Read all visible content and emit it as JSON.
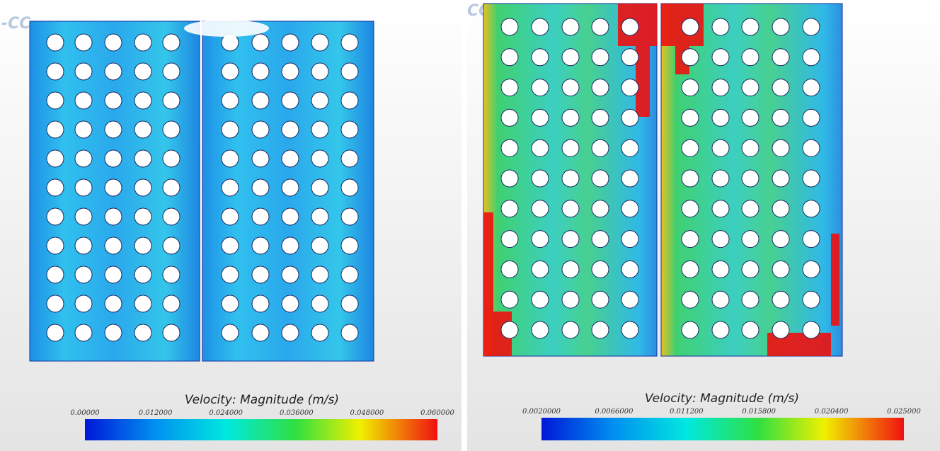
{
  "panels": [
    {
      "watermark": "-CC",
      "colorbar": {
        "title": "Velocity: Magnitude (m/s)",
        "ticks": [
          {
            "value": 0,
            "label": "0.00000"
          },
          {
            "value": 0.012,
            "label": "0.012000"
          },
          {
            "value": 0.024,
            "label": "0.024000"
          },
          {
            "value": 0.036,
            "label": "0.036000"
          },
          {
            "value": 0.048,
            "label": "0.048000"
          },
          {
            "value": 0.06,
            "label": "0.060000"
          }
        ]
      }
    },
    {
      "watermark": "CC",
      "colorbar": {
        "title": "Velocity: Magnitude (m/s)",
        "ticks": [
          {
            "value": 0.002,
            "label": "0.0020000"
          },
          {
            "value": 0.0066,
            "label": "0.0066000"
          },
          {
            "value": 0.0112,
            "label": "0.011200"
          },
          {
            "value": 0.0158,
            "label": "0.015800"
          },
          {
            "value": 0.0204,
            "label": "0.020400"
          },
          {
            "value": 0.025,
            "label": "0.025000"
          }
        ]
      }
    }
  ]
}
